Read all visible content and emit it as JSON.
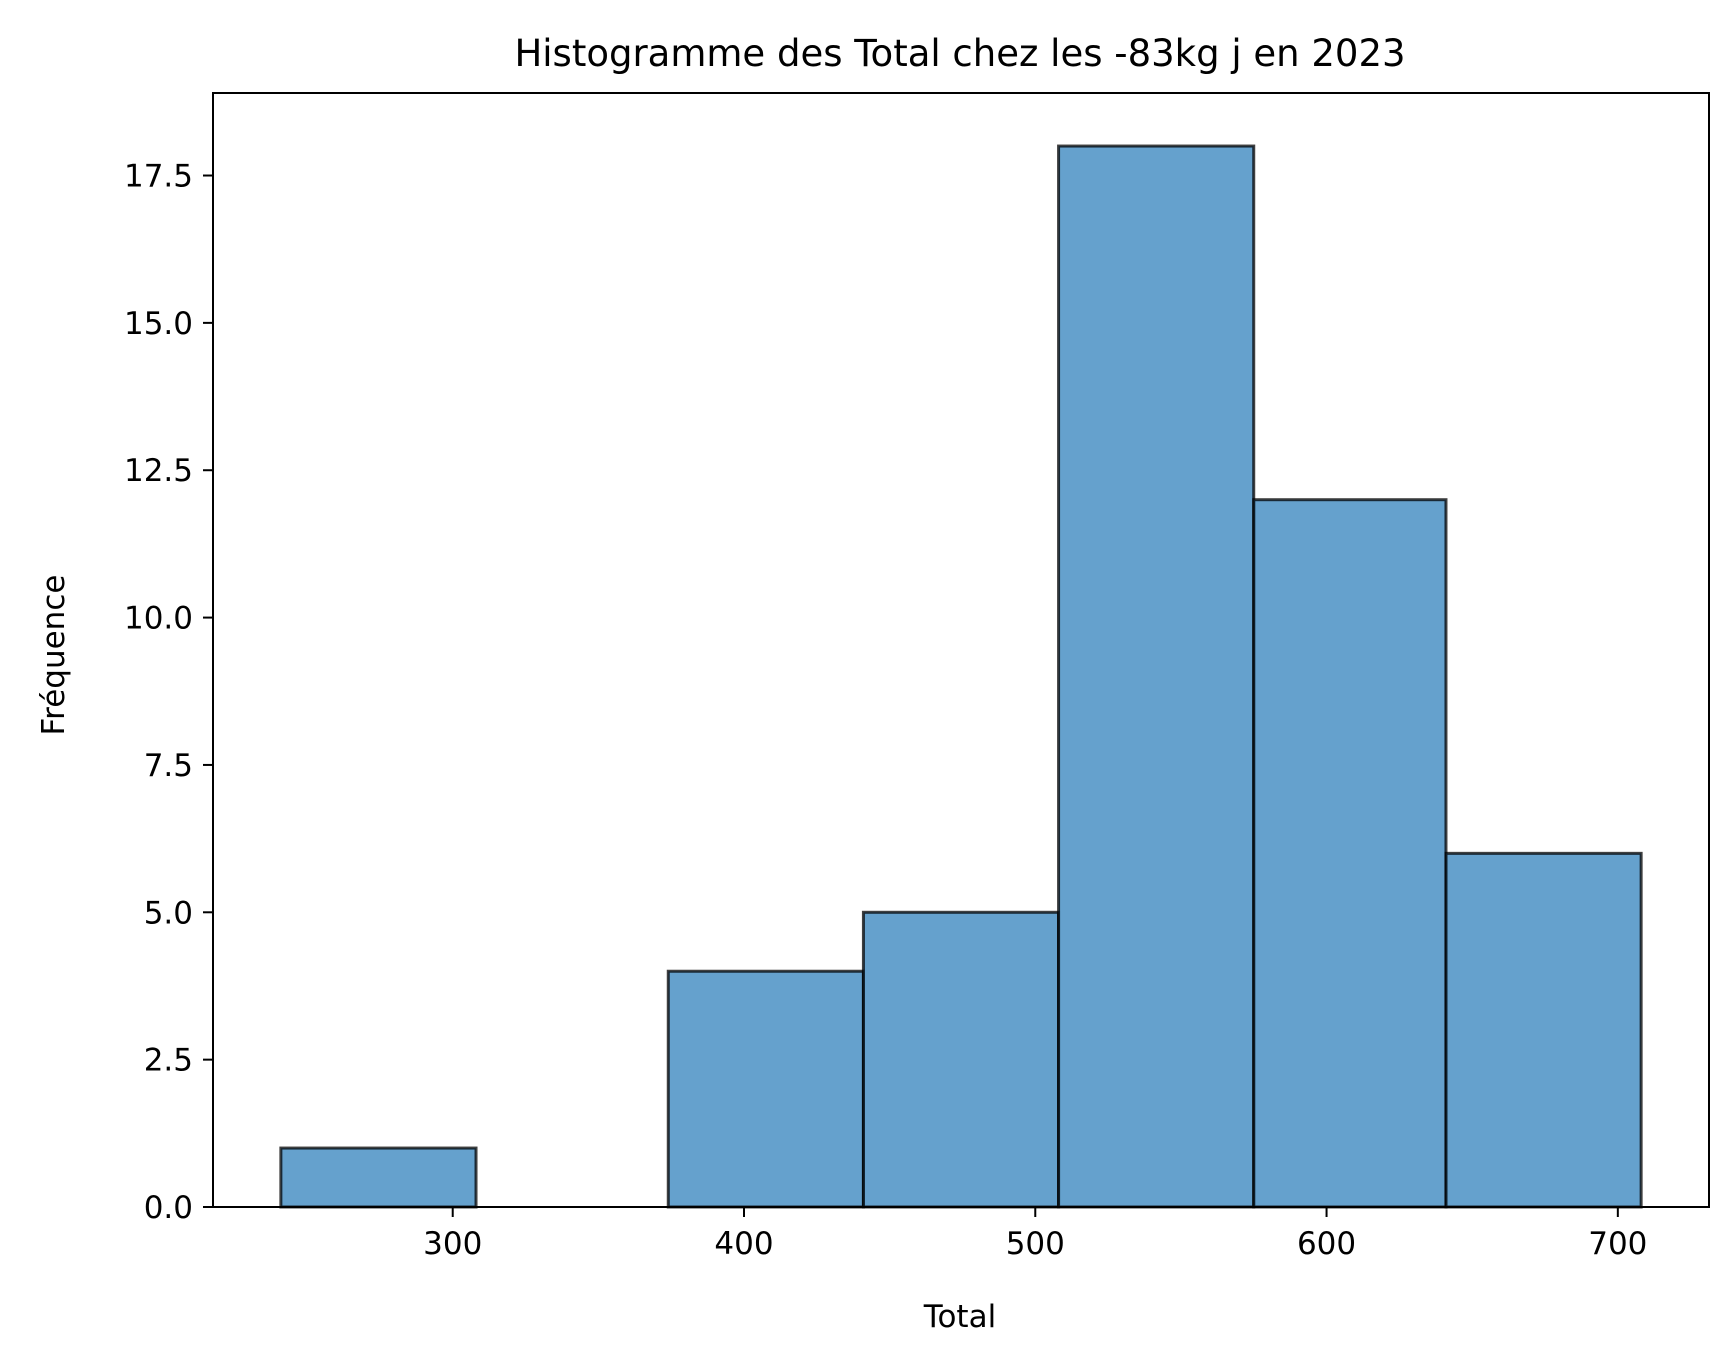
{
  "chart_data": {
    "type": "bar",
    "title": "Histogramme des Total chez les -83kg j en 2023",
    "xlabel": "Total",
    "ylabel": "Fréquence",
    "bins": [
      {
        "start": 241,
        "end": 308,
        "count": 1
      },
      {
        "start": 308,
        "end": 374,
        "count": 0
      },
      {
        "start": 374,
        "end": 441,
        "count": 4
      },
      {
        "start": 441,
        "end": 508,
        "count": 5
      },
      {
        "start": 508,
        "end": 575,
        "count": 18
      },
      {
        "start": 575,
        "end": 641,
        "count": 12
      },
      {
        "start": 641,
        "end": 708,
        "count": 6
      }
    ],
    "xlim": [
      217.7,
      731.3
    ],
    "ylim": [
      0,
      18.9
    ],
    "xticks": [
      300,
      400,
      500,
      600,
      700
    ],
    "yticks": [
      0,
      2.5,
      5,
      7.5,
      10,
      12.5,
      15,
      17.5
    ],
    "xtick_labels": [
      "300",
      "400",
      "500",
      "600",
      "700"
    ],
    "ytick_labels": [
      "0.0",
      "2.5",
      "5.0",
      "7.5",
      "10.0",
      "12.5",
      "15.0",
      "17.5"
    ],
    "grid": false,
    "legend": "none",
    "colors": {
      "bar_fill": "#3a87bf",
      "bar_edge": "#000000",
      "axes": "#000000"
    }
  }
}
